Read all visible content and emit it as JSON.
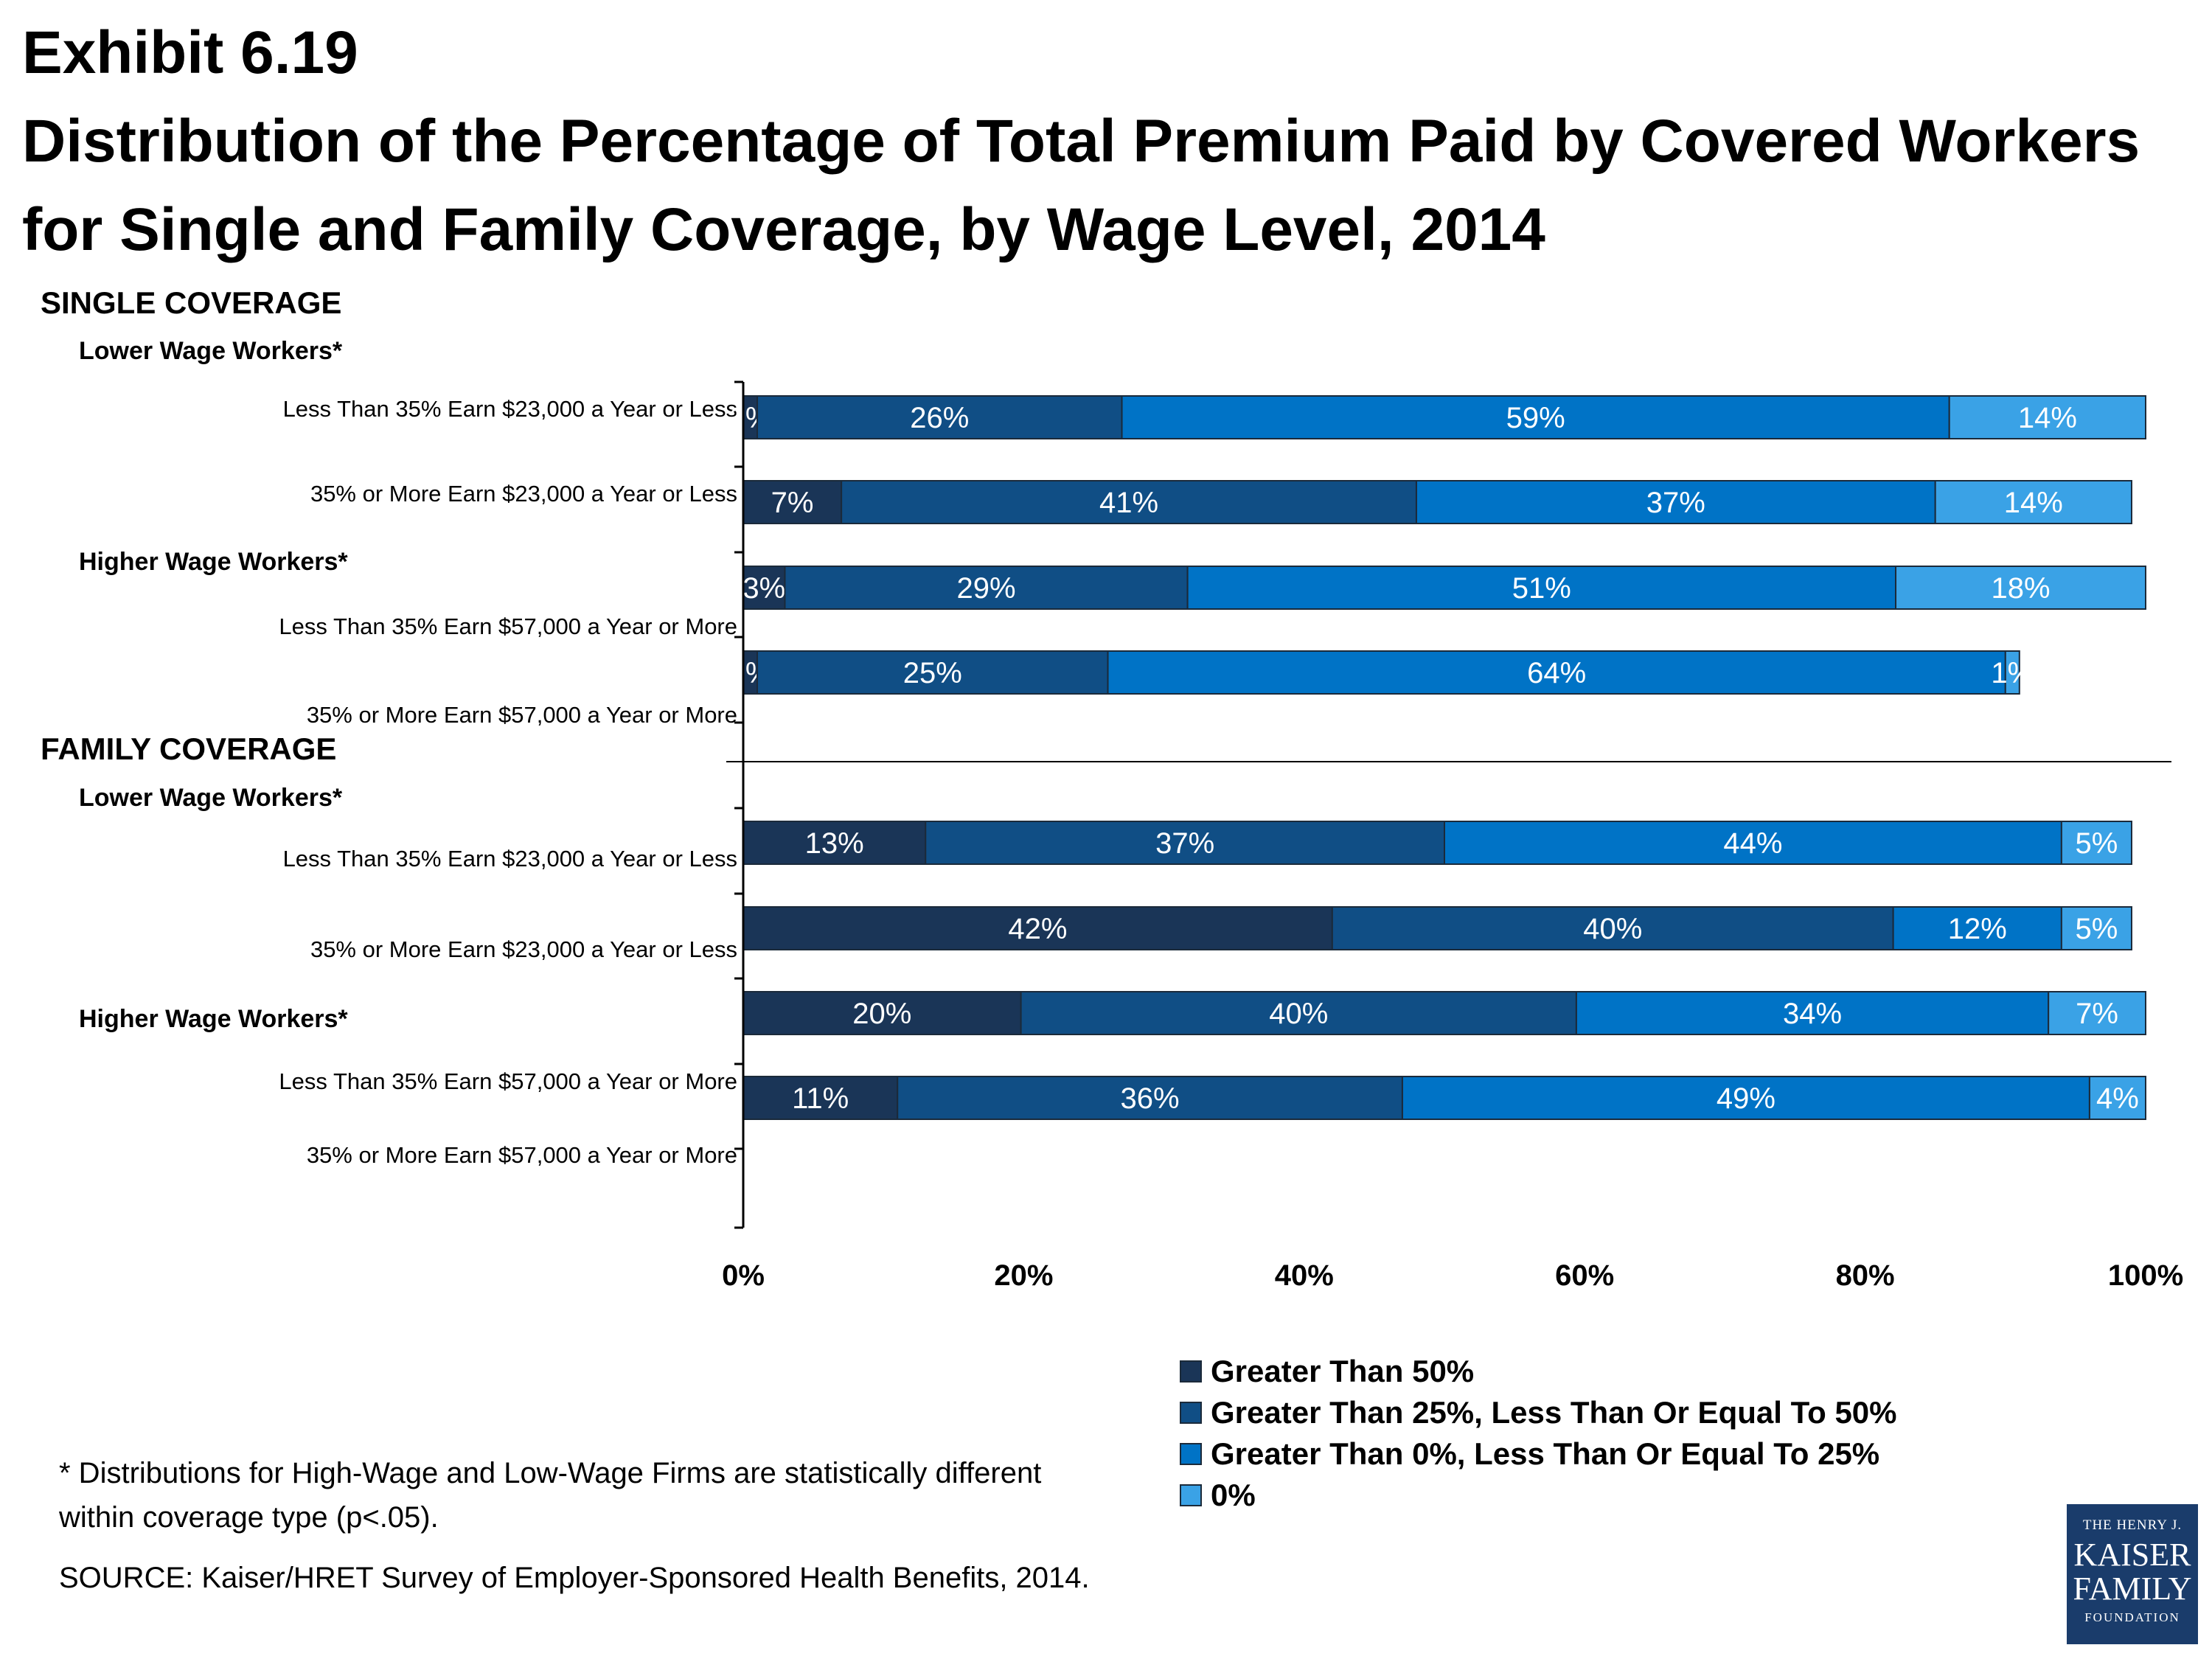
{
  "header": {
    "exhibit": "Exhibit 6.19",
    "title": "Distribution of the Percentage of Total Premium Paid by Covered Workers for Single and Family Coverage, by Wage Level, 2014"
  },
  "colors": {
    "greater_than_50": "#1a3557",
    "greater_than_25_le_50": "#104e85",
    "greater_than_0_le_25": "#0073c6",
    "zero": "#3aa2e6"
  },
  "chart_data": {
    "type": "bar",
    "orientation": "horizontal",
    "stacked": true,
    "xlim": [
      0,
      100
    ],
    "x_ticks": [
      "0%",
      "20%",
      "40%",
      "60%",
      "80%",
      "100%"
    ],
    "sections": [
      {
        "label": "SINGLE COVERAGE",
        "groups": [
          {
            "label": "Lower Wage Workers*",
            "rows": [
              {
                "label": "Less Than 35% Earn $23,000 a Year or Less",
                "values": [
                  1,
                  26,
                  59,
                  14
                ]
              },
              {
                "label": "35% or More Earn $23,000 a Year or Less",
                "values": [
                  7,
                  41,
                  37,
                  14
                ]
              }
            ]
          },
          {
            "label": "Higher Wage Workers*",
            "rows": [
              {
                "label": "Less Than 35% Earn $57,000 a Year or More",
                "values": [
                  3,
                  29,
                  51,
                  18
                ]
              },
              {
                "label": "35% or More Earn $57,000 a Year or More",
                "values": [
                  1,
                  25,
                  64,
                  1
                ]
              }
            ]
          }
        ]
      },
      {
        "label": "FAMILY COVERAGE",
        "groups": [
          {
            "label": "Lower Wage Workers*",
            "rows": [
              {
                "label": "Less Than 35% Earn $23,000 a Year or Less",
                "values": [
                  13,
                  37,
                  44,
                  5
                ]
              },
              {
                "label": "35% or More Earn $23,000 a Year or Less",
                "values": [
                  42,
                  40,
                  12,
                  5
                ]
              }
            ]
          },
          {
            "label": "Higher Wage Workers*",
            "rows": [
              {
                "label": "Less Than 35% Earn $57,000 a Year or More",
                "values": [
                  20,
                  40,
                  34,
                  7
                ]
              },
              {
                "label": "35% or More Earn $57,000 a Year or More",
                "values": [
                  11,
                  36,
                  49,
                  4
                ]
              }
            ]
          }
        ]
      }
    ],
    "series": [
      {
        "name": "Greater Than 50%",
        "color": "#1a3557"
      },
      {
        "name": "Greater Than 25%, Less Than Or Equal To 50%",
        "color": "#104e85"
      },
      {
        "name": "Greater Than 0%, Less Than Or Equal To 25%",
        "color": "#0073c6"
      },
      {
        "name": "0%",
        "color": "#3aa2e6"
      }
    ],
    "legend_position": "bottom-right"
  },
  "footnote": "* Distributions for High-Wage and Low-Wage Firms are statistically different within coverage type (p<.05).",
  "source": "SOURCE:  Kaiser/HRET Survey of Employer-Sponsored Health Benefits, 2014.",
  "logo": {
    "line1": "THE HENRY J.",
    "line2": "KAISER",
    "line3": "FAMILY",
    "line4": "FOUNDATION"
  }
}
